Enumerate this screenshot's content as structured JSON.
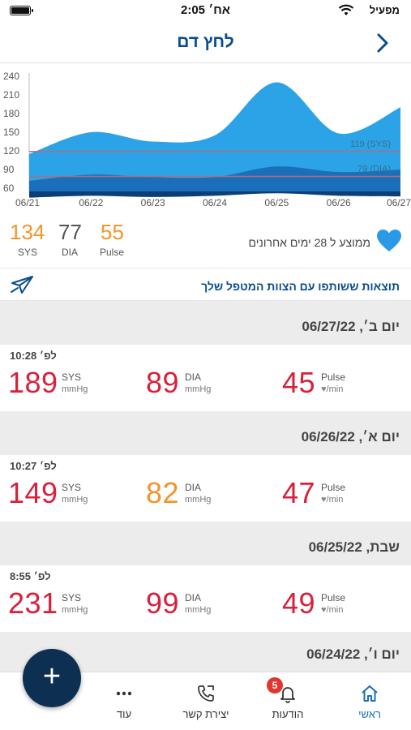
{
  "status_bar": {
    "time": "2:05 אח׳",
    "carrier": "מפעיל"
  },
  "header": {
    "title": "לחץ דם"
  },
  "chart_data": {
    "type": "area",
    "x": [
      "06/21",
      "06/22",
      "06/23",
      "06/24",
      "06/25",
      "06/26",
      "06/27"
    ],
    "y_ticks": [
      "240",
      "210",
      "180",
      "150",
      "120",
      "90",
      "60"
    ],
    "ylim": [
      55,
      245
    ],
    "series": [
      {
        "name": "SYS",
        "color": "#2ba3e6",
        "values": [
          115,
          150,
          135,
          145,
          230,
          148,
          190
        ]
      },
      {
        "name": "DIA",
        "color": "#1a6fb8",
        "values": [
          72,
          82,
          78,
          78,
          95,
          86,
          90
        ]
      },
      {
        "name": "Pulse",
        "color": "#0b3f7a",
        "values": [
          45,
          48,
          46,
          48,
          52,
          48,
          47
        ]
      }
    ],
    "reference_lines": [
      {
        "label": "119 (SYS)",
        "value": 119
      },
      {
        "label": "79 (DIA)",
        "value": 79
      }
    ]
  },
  "summary": {
    "sys_value": "134",
    "sys_label": "SYS",
    "sys_color": "#f0962a",
    "dia_value": "77",
    "dia_label": "DIA",
    "dia_color": "#555555",
    "pulse_value": "55",
    "pulse_label": "Pulse",
    "pulse_color": "#f0962a",
    "avg_text": "ממוצע ל 28 ימים אחרונים"
  },
  "share": {
    "text": "תוצאות ששותפו עם הצוות המטפל שלך"
  },
  "units": {
    "sys": "SYS",
    "dia": "DIA",
    "pulse": "Pulse",
    "mmhg": "mmHg",
    "min": "/min"
  },
  "days": [
    {
      "header": "יום ב׳, 06/27/22",
      "time": "10:28 לפ׳",
      "sys": "189",
      "dia": "89",
      "pulse": "45",
      "sys_color": "#d8203a",
      "dia_color": "#d8203a",
      "pulse_color": "#d8203a"
    },
    {
      "header": "יום א׳, 06/26/22",
      "time": "10:27 לפ׳",
      "sys": "149",
      "dia": "82",
      "pulse": "47",
      "sys_color": "#d8203a",
      "dia_color": "#f0962a",
      "pulse_color": "#d8203a"
    },
    {
      "header": "שבת, 06/25/22",
      "time": "8:55 לפ׳",
      "sys": "231",
      "dia": "99",
      "pulse": "49",
      "sys_color": "#d8203a",
      "dia_color": "#d8203a",
      "pulse_color": "#d8203a"
    },
    {
      "header": "יום ו׳, 06/24/22"
    }
  ],
  "tabbar": {
    "home": "ראשי",
    "notifications": "הודעות",
    "notifications_badge": "5",
    "contact": "יצירת קשר",
    "more": "עוד"
  },
  "fab_symbol": "+"
}
